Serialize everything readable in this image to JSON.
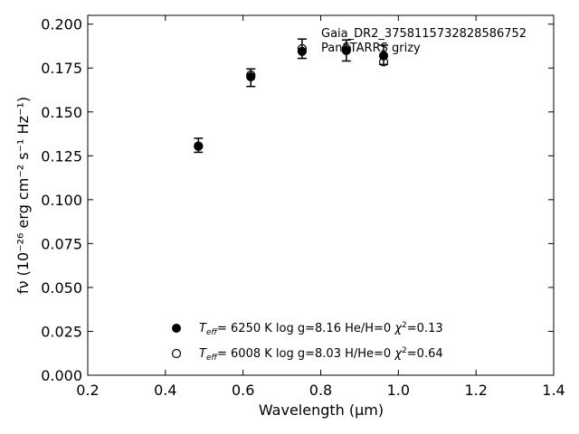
{
  "chart_data": {
    "type": "scatter",
    "xlabel": "Wavelength (μm)",
    "ylabel": "fν (10⁻²⁶ erg cm⁻² s⁻¹ Hz⁻¹)",
    "xlim": [
      0.2,
      1.4
    ],
    "ylim": [
      0.0,
      0.205
    ],
    "xticks": [
      "0.2",
      "0.4",
      "0.6",
      "0.8",
      "1.0",
      "1.2",
      "1.4"
    ],
    "yticks": [
      "0.000",
      "0.025",
      "0.050",
      "0.075",
      "0.100",
      "0.125",
      "0.150",
      "0.175",
      "0.200"
    ],
    "annotations": [
      "Gaia_DR2_3758115732828586752",
      "PanSTARRS grizy"
    ],
    "observed": {
      "x": [
        0.485,
        0.62,
        0.752,
        0.866,
        0.962
      ],
      "y": [
        0.131,
        0.1695,
        0.186,
        0.185,
        0.1825
      ],
      "yerr": [
        0.004,
        0.005,
        0.0055,
        0.006,
        0.0055
      ]
    },
    "series": [
      {
        "name": "Teff= 6250 K log g=8.16 He/H=0 χ²=0.13",
        "marker": "filled-circle",
        "x": [
          0.485,
          0.62,
          0.752,
          0.866,
          0.962
        ],
        "y": [
          0.1305,
          0.17,
          0.1845,
          0.185,
          0.182
        ]
      },
      {
        "name": "Teff= 6008 K log g=8.03 H/He=0 χ²=0.64",
        "marker": "open-circle",
        "x": [
          0.485,
          0.62,
          0.752,
          0.866,
          0.962
        ],
        "y": [
          0.1305,
          0.171,
          0.186,
          0.186,
          0.1785
        ]
      }
    ],
    "legend": {
      "placement": "lower-center",
      "entries": [
        {
          "teff_value": "6250 K",
          "logg": "log g=8.16",
          "comp": "He/H=0",
          "chi2": "=0.13"
        },
        {
          "teff_value": "6008 K",
          "logg": "log g=8.03",
          "comp": "H/He=0",
          "chi2": "=0.64"
        }
      ]
    },
    "grid": false,
    "colors": {
      "marker": "#000000",
      "axes": "#000000"
    }
  }
}
